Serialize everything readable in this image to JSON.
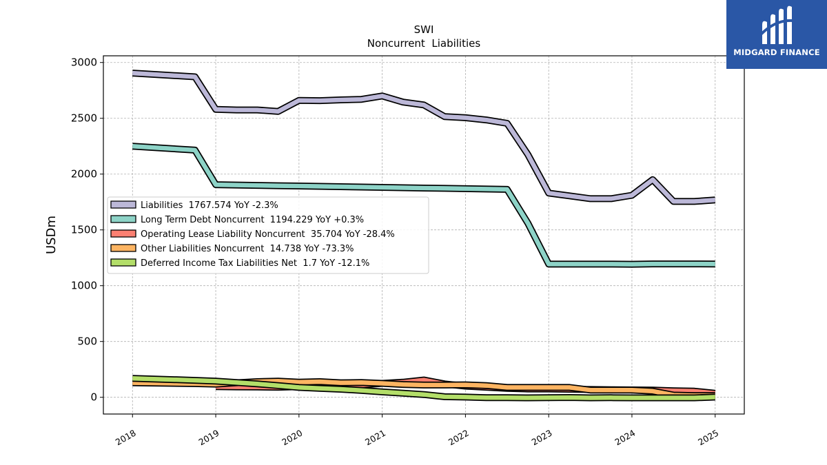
{
  "chart_data": {
    "type": "line",
    "title": "SWI",
    "subtitle": "Noncurrent  Liabilities",
    "ylabel": "USDm",
    "xlabel": "",
    "xlim": [
      2017.65,
      2025.35
    ],
    "ylim": [
      -150,
      3060
    ],
    "x_ticks": [
      "2018",
      "2019",
      "2020",
      "2021",
      "2022",
      "2023",
      "2024",
      "2025"
    ],
    "y_ticks": [
      "0",
      "500",
      "1000",
      "1500",
      "2000",
      "2500",
      "3000"
    ],
    "grid": true,
    "legend_position": "center-left",
    "series": [
      {
        "name": "Liabilities",
        "legend_label": "Liabilities  1767.574 YoY -2.3%",
        "color": "#bcb8d8",
        "x": [
          2018.0,
          2018.75,
          2019.0,
          2019.25,
          2019.5,
          2019.75,
          2020.0,
          2020.25,
          2020.5,
          2020.75,
          2021.0,
          2021.25,
          2021.5,
          2021.75,
          2022.0,
          2022.25,
          2022.5,
          2022.75,
          2023.0,
          2023.25,
          2023.5,
          2023.75,
          2024.0,
          2024.25,
          2024.5,
          2024.75,
          2025.0
        ],
        "values": [
          2905,
          2872,
          2580,
          2575,
          2575,
          2562,
          2660,
          2658,
          2665,
          2670,
          2700,
          2645,
          2620,
          2515,
          2505,
          2485,
          2455,
          2175,
          1830,
          1805,
          1780,
          1780,
          1810,
          1950,
          1755,
          1755,
          1768
        ]
      },
      {
        "name": "Long Term Debt Noncurrent",
        "legend_label": "Long Term Debt Noncurrent  1194.229 YoY +0.3%",
        "color": "#8dd3c7",
        "x": [
          2018.0,
          2018.75,
          2019.0,
          2019.25,
          2019.5,
          2019.75,
          2020.0,
          2020.25,
          2020.5,
          2020.75,
          2021.0,
          2021.25,
          2021.5,
          2021.75,
          2022.0,
          2022.25,
          2022.5,
          2022.75,
          2023.0,
          2023.25,
          2023.5,
          2023.75,
          2024.0,
          2024.25,
          2024.5,
          2024.75,
          2025.0
        ],
        "values": [
          2250,
          2215,
          1905,
          1902,
          1899,
          1896,
          1893,
          1890,
          1887,
          1884,
          1881,
          1878,
          1875,
          1872,
          1869,
          1866,
          1863,
          1560,
          1193,
          1193,
          1193,
          1193,
          1192,
          1195,
          1195,
          1195,
          1194
        ]
      },
      {
        "name": "Operating Lease Liability Noncurrent",
        "legend_label": "Operating Lease Liability Noncurrent  35.704 YoY -28.4%",
        "color": "#fb8072",
        "x": [
          2019.0,
          2019.25,
          2019.5,
          2019.75,
          2020.0,
          2020.25,
          2020.5,
          2020.75,
          2021.0,
          2021.25,
          2021.5,
          2021.75,
          2022.0,
          2022.25,
          2022.5,
          2022.75,
          2023.0,
          2023.25,
          2023.5,
          2023.75,
          2024.0,
          2024.25,
          2024.5,
          2024.75,
          2025.0
        ],
        "values": [
          95,
          93,
          92,
          90,
          95,
          100,
          105,
          110,
          125,
          135,
          155,
          120,
          100,
          90,
          80,
          75,
          75,
          72,
          70,
          68,
          66,
          64,
          58,
          55,
          35.7
        ]
      },
      {
        "name": "Other Liabilities Noncurrent",
        "legend_label": "Other Liabilities Noncurrent  14.738 YoY -73.3%",
        "color": "#fdb462",
        "x": [
          2018.0,
          2018.75,
          2019.0,
          2019.25,
          2019.5,
          2019.75,
          2020.0,
          2020.25,
          2020.5,
          2020.75,
          2021.0,
          2021.25,
          2021.5,
          2021.75,
          2022.0,
          2022.25,
          2022.5,
          2022.75,
          2023.0,
          2023.25,
          2023.5,
          2023.75,
          2024.0,
          2024.25,
          2024.5,
          2024.75,
          2025.0
        ],
        "values": [
          130,
          122,
          118,
          130,
          140,
          145,
          135,
          140,
          130,
          132,
          125,
          115,
          110,
          110,
          112,
          105,
          88,
          88,
          88,
          88,
          65,
          65,
          65,
          55,
          20,
          15,
          14.7
        ]
      },
      {
        "name": "Deferred Income Tax Liabilities Net",
        "legend_label": "Deferred Income Tax Liabilities Net  1.7 YoY -12.1%",
        "color": "#b3de69",
        "x": [
          2018.0,
          2018.75,
          2019.0,
          2019.25,
          2019.5,
          2019.75,
          2020.0,
          2020.25,
          2020.5,
          2020.75,
          2021.0,
          2021.25,
          2021.5,
          2021.75,
          2022.0,
          2022.25,
          2022.5,
          2022.75,
          2023.0,
          2023.25,
          2023.5,
          2023.75,
          2024.0,
          2024.25,
          2024.5,
          2024.75,
          2025.0
        ],
        "values": [
          170,
          152,
          145,
          132,
          120,
          105,
          88,
          80,
          72,
          62,
          48,
          37,
          25,
          5,
          2,
          -3,
          -3,
          -5,
          -3,
          -2,
          -5,
          -4,
          -5,
          -5,
          -5,
          -5,
          1.7
        ]
      }
    ]
  },
  "logo": {
    "text": "MIDGARD FINANCE"
  }
}
